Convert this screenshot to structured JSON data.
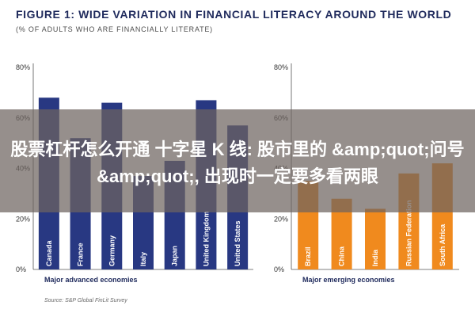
{
  "title": "FIGURE 1: WIDE VARIATION IN FINANCIAL LITERACY AROUND THE WORLD",
  "subtitle": "(% OF ADULTS WHO ARE FINANCIALLY LITERATE)",
  "banner_text": "股票杠杆怎么开通 十字星 K 线: 股市里的 &amp;quot;问号&amp;quot;, 出现时一定要多看两眼",
  "source": "Source: S&P Global FinLit Survey",
  "colors": {
    "advanced": "#283882",
    "emerging": "#f08a1e",
    "title": "#1f2a5c"
  },
  "chart_data": [
    {
      "type": "bar",
      "categories": [
        "Canada",
        "France",
        "Germany",
        "Italy",
        "Japan",
        "United Kingdom",
        "United States"
      ],
      "values": [
        68,
        52,
        66,
        37,
        43,
        67,
        57
      ],
      "xlabel": "Major advanced economies",
      "ylabel": "",
      "yticks": [
        "0%",
        "20%",
        "40%",
        "60%",
        "80%"
      ],
      "ylim": [
        0,
        80
      ],
      "grid": false
    },
    {
      "type": "bar",
      "categories": [
        "Brazil",
        "China",
        "India",
        "Russian Federation",
        "South Africa"
      ],
      "values": [
        35,
        28,
        24,
        38,
        42
      ],
      "xlabel": "Major emerging economies",
      "ylabel": "",
      "yticks": [
        "0%",
        "20%",
        "40%",
        "60%",
        "80%"
      ],
      "ylim": [
        0,
        80
      ],
      "grid": false
    }
  ]
}
